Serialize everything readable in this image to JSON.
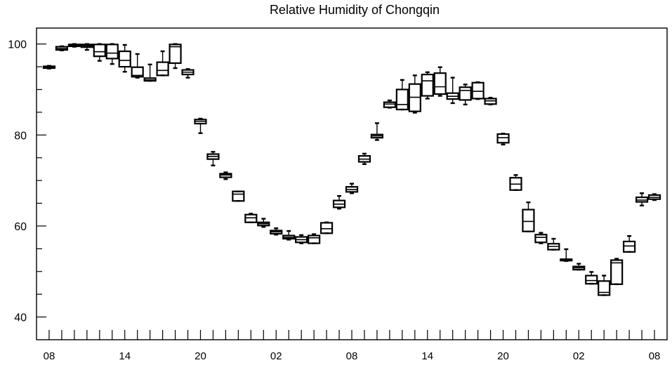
{
  "chart_data": {
    "type": "box",
    "title": "Relative Humidity of Chongqin",
    "xlabel": "",
    "ylabel": "",
    "ylim": [
      35,
      103.5
    ],
    "y_ticks": [
      40,
      60,
      80,
      100
    ],
    "x_ticks": [
      "08",
      "14",
      "20",
      "02",
      "08",
      "14",
      "20",
      "02",
      "08"
    ],
    "x_tick_positions": [
      0,
      6,
      12,
      18,
      24,
      30,
      36,
      42,
      48
    ],
    "x_range": [
      -1,
      49
    ],
    "grid": false,
    "boxes": [
      {
        "x": 0,
        "q1": 94.7,
        "median": 94.9,
        "q3": 95.1,
        "min": 94.6,
        "max": 95.2
      },
      {
        "x": 1,
        "q1": 98.7,
        "median": 99.0,
        "q3": 99.4,
        "min": 98.6,
        "max": 99.5
      },
      {
        "x": 2,
        "q1": 99.5,
        "median": 99.7,
        "q3": 99.9,
        "min": 99.4,
        "max": 100.0
      },
      {
        "x": 3,
        "q1": 99.3,
        "median": 99.6,
        "q3": 99.9,
        "min": 98.7,
        "max": 100.0
      },
      {
        "x": 4,
        "q1": 97.3,
        "median": 98.3,
        "q3": 99.9,
        "min": 96.3,
        "max": 100.0
      },
      {
        "x": 5,
        "q1": 96.8,
        "median": 98.0,
        "q3": 99.9,
        "min": 95.6,
        "max": 100.0
      },
      {
        "x": 6,
        "q1": 95.0,
        "median": 96.4,
        "q3": 98.4,
        "min": 93.9,
        "max": 99.8
      },
      {
        "x": 7,
        "q1": 92.8,
        "median": 93.1,
        "q3": 94.9,
        "min": 92.6,
        "max": 97.8
      },
      {
        "x": 8,
        "q1": 91.9,
        "median": 92.1,
        "q3": 92.5,
        "min": 91.9,
        "max": 95.5
      },
      {
        "x": 9,
        "q1": 93.1,
        "median": 94.2,
        "q3": 96.0,
        "min": 93.1,
        "max": 98.4
      },
      {
        "x": 10,
        "q1": 95.8,
        "median": 99.4,
        "q3": 99.9,
        "min": 94.7,
        "max": 100.0
      },
      {
        "x": 11,
        "q1": 93.3,
        "median": 93.8,
        "q3": 94.3,
        "min": 92.6,
        "max": 94.5
      },
      {
        "x": 12,
        "q1": 82.5,
        "median": 83.0,
        "q3": 83.4,
        "min": 80.4,
        "max": 83.6
      },
      {
        "x": 13,
        "q1": 74.7,
        "median": 75.3,
        "q3": 75.8,
        "min": 73.3,
        "max": 76.3
      },
      {
        "x": 14,
        "q1": 70.7,
        "median": 71.2,
        "q3": 71.5,
        "min": 70.3,
        "max": 71.8
      },
      {
        "x": 15,
        "q1": 65.5,
        "median": 67.0,
        "q3": 67.6,
        "min": 65.5,
        "max": 67.6
      },
      {
        "x": 16,
        "q1": 60.8,
        "median": 61.8,
        "q3": 62.5,
        "min": 60.8,
        "max": 62.7
      },
      {
        "x": 17,
        "q1": 60.1,
        "median": 60.5,
        "q3": 60.8,
        "min": 59.8,
        "max": 61.6
      },
      {
        "x": 18,
        "q1": 58.3,
        "median": 58.7,
        "q3": 59.0,
        "min": 58.1,
        "max": 59.5
      },
      {
        "x": 19,
        "q1": 57.2,
        "median": 57.5,
        "q3": 57.9,
        "min": 57.0,
        "max": 58.9
      },
      {
        "x": 20,
        "q1": 56.4,
        "median": 57.0,
        "q3": 57.6,
        "min": 56.2,
        "max": 58.0
      },
      {
        "x": 21,
        "q1": 56.2,
        "median": 57.4,
        "q3": 57.9,
        "min": 56.2,
        "max": 58.2
      },
      {
        "x": 22,
        "q1": 58.4,
        "median": 59.4,
        "q3": 60.7,
        "min": 58.4,
        "max": 60.8
      },
      {
        "x": 23,
        "q1": 64.1,
        "median": 64.8,
        "q3": 65.6,
        "min": 63.8,
        "max": 66.6
      },
      {
        "x": 24,
        "q1": 67.5,
        "median": 68.0,
        "q3": 68.6,
        "min": 67.2,
        "max": 69.3
      },
      {
        "x": 25,
        "q1": 74.1,
        "median": 74.7,
        "q3": 75.4,
        "min": 73.6,
        "max": 75.9
      },
      {
        "x": 26,
        "q1": 79.4,
        "median": 79.8,
        "q3": 80.1,
        "min": 78.9,
        "max": 82.6
      },
      {
        "x": 27,
        "q1": 86.1,
        "median": 86.8,
        "q3": 87.2,
        "min": 86.0,
        "max": 87.6
      },
      {
        "x": 28,
        "q1": 85.6,
        "median": 86.7,
        "q3": 90.0,
        "min": 85.6,
        "max": 92.1
      },
      {
        "x": 29,
        "q1": 85.2,
        "median": 88.3,
        "q3": 91.2,
        "min": 84.9,
        "max": 93.1
      },
      {
        "x": 30,
        "q1": 88.6,
        "median": 91.9,
        "q3": 93.3,
        "min": 88.0,
        "max": 93.8
      },
      {
        "x": 31,
        "q1": 89.0,
        "median": 90.6,
        "q3": 93.6,
        "min": 88.6,
        "max": 94.9
      },
      {
        "x": 32,
        "q1": 87.9,
        "median": 88.5,
        "q3": 89.2,
        "min": 87.0,
        "max": 92.6
      },
      {
        "x": 33,
        "q1": 87.7,
        "median": 89.8,
        "q3": 90.5,
        "min": 86.7,
        "max": 91.1
      },
      {
        "x": 34,
        "q1": 88.0,
        "median": 89.6,
        "q3": 91.5,
        "min": 87.9,
        "max": 91.6
      },
      {
        "x": 35,
        "q1": 86.8,
        "median": 87.5,
        "q3": 88.0,
        "min": 86.7,
        "max": 88.2
      },
      {
        "x": 36,
        "q1": 78.3,
        "median": 79.4,
        "q3": 80.2,
        "min": 77.9,
        "max": 80.3
      },
      {
        "x": 37,
        "q1": 67.9,
        "median": 69.2,
        "q3": 70.6,
        "min": 67.9,
        "max": 71.2
      },
      {
        "x": 38,
        "q1": 58.8,
        "median": 61.0,
        "q3": 63.6,
        "min": 58.8,
        "max": 65.2
      },
      {
        "x": 39,
        "q1": 56.4,
        "median": 57.5,
        "q3": 58.1,
        "min": 56.2,
        "max": 58.5
      },
      {
        "x": 40,
        "q1": 54.8,
        "median": 55.5,
        "q3": 56.1,
        "min": 54.8,
        "max": 57.2
      },
      {
        "x": 41,
        "q1": 52.4,
        "median": 52.6,
        "q3": 52.7,
        "min": 52.3,
        "max": 54.9
      },
      {
        "x": 42,
        "q1": 50.4,
        "median": 50.8,
        "q3": 51.1,
        "min": 50.4,
        "max": 51.7
      },
      {
        "x": 43,
        "q1": 47.3,
        "median": 48.0,
        "q3": 49.1,
        "min": 47.3,
        "max": 49.9
      },
      {
        "x": 44,
        "q1": 44.8,
        "median": 45.4,
        "q3": 47.9,
        "min": 44.8,
        "max": 49.1
      },
      {
        "x": 45,
        "q1": 47.2,
        "median": 51.9,
        "q3": 52.5,
        "min": 47.2,
        "max": 52.8
      },
      {
        "x": 46,
        "q1": 54.3,
        "median": 55.6,
        "q3": 56.6,
        "min": 54.3,
        "max": 57.8
      },
      {
        "x": 47,
        "q1": 65.3,
        "median": 65.7,
        "q3": 66.3,
        "min": 64.5,
        "max": 67.2
      },
      {
        "x": 48,
        "q1": 65.9,
        "median": 66.3,
        "q3": 66.8,
        "min": 65.7,
        "max": 67.0
      }
    ],
    "colors": {
      "box_stroke": "#000000",
      "axis": "#000000",
      "background": "#ffffff"
    }
  }
}
